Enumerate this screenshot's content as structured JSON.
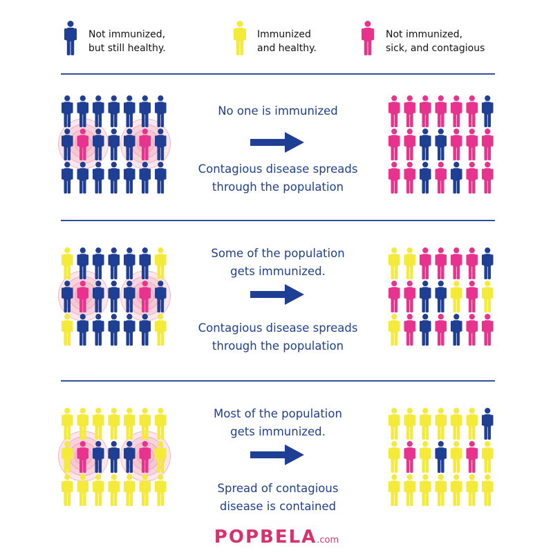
{
  "colors": {
    "not_immunized": "#1f3f95",
    "immunized": "#f4ea3a",
    "sick": "#e8338e",
    "text": "#1f3f8f",
    "brand": "#d6336c"
  },
  "legend": [
    {
      "lines": [
        "Not immunized,",
        "but still healthy."
      ],
      "color_key": "not_immunized"
    },
    {
      "lines": [
        "Immunized",
        "and healthy."
      ],
      "color_key": "immunized"
    },
    {
      "lines": [
        "Not immunized,",
        "sick, and contagious"
      ],
      "color_key": "sick"
    }
  ],
  "panels": [
    {
      "top_lines": [
        "No one is immunized"
      ],
      "bottom_lines": [
        "Contagious disease spreads",
        "through the population"
      ],
      "before": [
        "BBBBBBB",
        "BPBBBPB",
        "BBBBBBB"
      ],
      "after": [
        "PPPPPPB",
        "PPBBPPP",
        "PPBPBPP"
      ]
    },
    {
      "top_lines": [
        "Some of the population",
        "gets immunized."
      ],
      "bottom_lines": [
        "Contagious disease spreads",
        "through the population"
      ],
      "before": [
        "YBBBBBY",
        "BPBBBPB",
        "YBBBBBY"
      ],
      "after": [
        "YYPPPPB",
        "PPBBYPY",
        "YPBPBPP"
      ]
    },
    {
      "top_lines": [
        "Most of the population",
        "gets immunized."
      ],
      "bottom_lines": [
        "Spread of contagious",
        "disease is contained"
      ],
      "before": [
        "YYYYYYY",
        "YPBBBPY",
        "YYYYYYY"
      ],
      "after": [
        "YYYYYYB",
        "YPYBYPY",
        "YYYYYYY"
      ]
    }
  ],
  "brand": {
    "name": "POPBELA",
    "suffix": ".com"
  }
}
